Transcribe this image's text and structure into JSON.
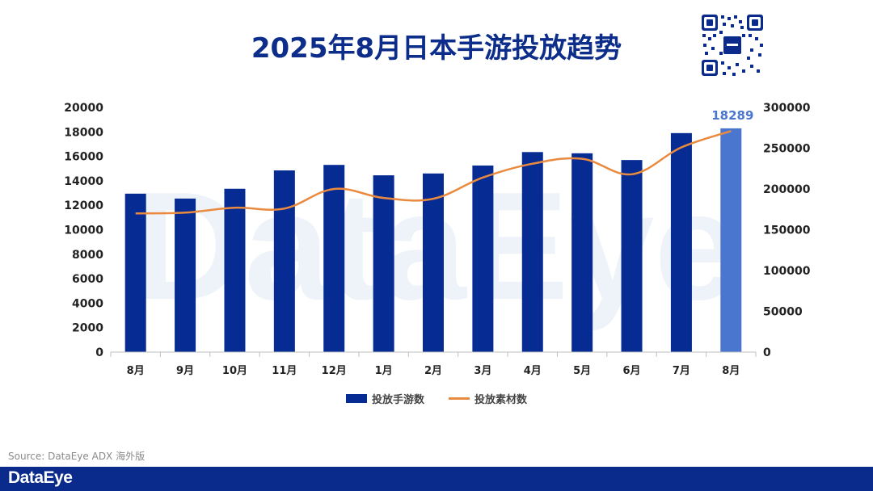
{
  "page": {
    "title": "2025年8月日本手游投放趋势",
    "source": "Source: DataEye ADX 海外版"
  },
  "colors": {
    "bar": "#062c94",
    "bar_highlight": "#4a76cf",
    "line": "#ea8a3f",
    "title": "#0c2d8a",
    "footer": "#0a2a8c"
  },
  "chart_data": {
    "type": "bar",
    "categories": [
      "8月",
      "9月",
      "10月",
      "11月",
      "12月",
      "1月",
      "2月",
      "3月",
      "4月",
      "5月",
      "6月",
      "7月",
      "8月"
    ],
    "series": [
      {
        "name": "投放手游数",
        "type": "bar",
        "axis": "left",
        "values": [
          12950,
          12550,
          13350,
          14850,
          15300,
          14450,
          14600,
          15250,
          16350,
          16250,
          15700,
          17900,
          18289
        ]
      },
      {
        "name": "投放素材数",
        "type": "line",
        "axis": "right",
        "values": [
          170000,
          171000,
          177000,
          176000,
          200000,
          189000,
          188000,
          214000,
          231000,
          237000,
          218000,
          251000,
          271000
        ]
      }
    ],
    "highlight_index": 12,
    "data_labels": [
      {
        "index": 12,
        "text": "18289"
      }
    ],
    "yticks_left": [
      "20000",
      "18000",
      "16000",
      "14000",
      "12000",
      "10000",
      "8000",
      "6000",
      "4000",
      "2000",
      "0"
    ],
    "yticks_right": [
      "300000",
      "250000",
      "200000",
      "150000",
      "100000",
      "50000",
      "0"
    ],
    "ylim_left": [
      0,
      20000
    ],
    "ylim_right": [
      0,
      300000
    ],
    "grid": false,
    "legend_position": "bottom"
  }
}
